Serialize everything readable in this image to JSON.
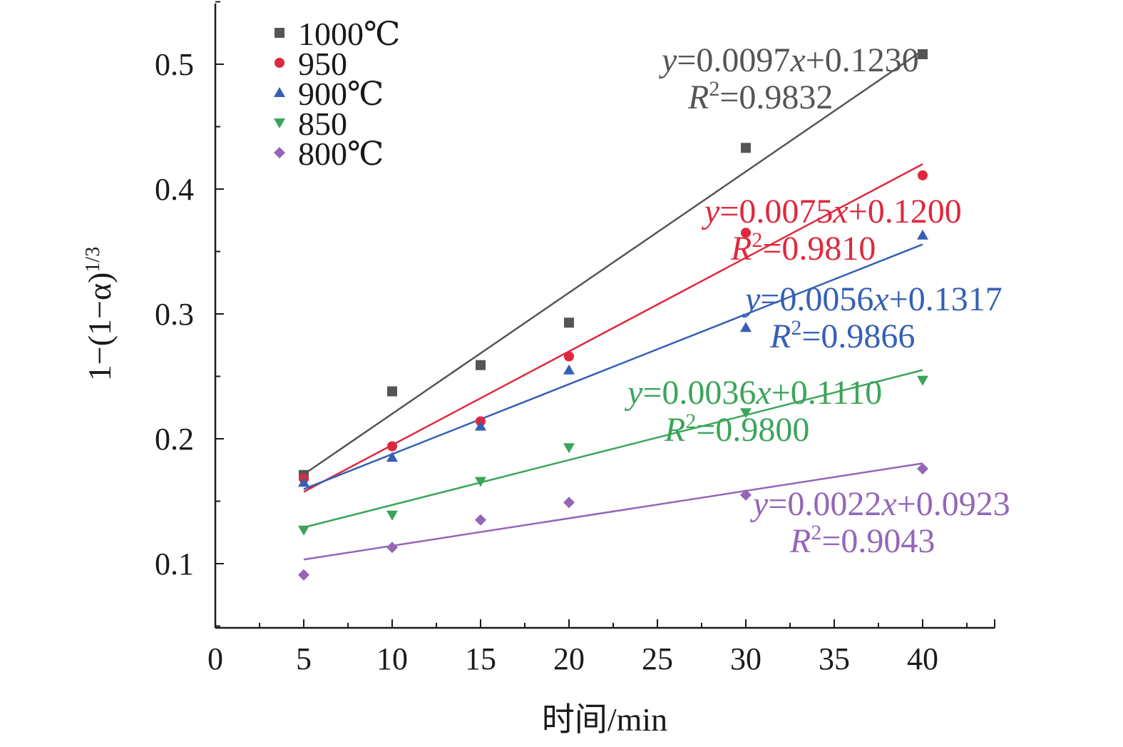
{
  "chart_data": {
    "type": "scatter",
    "xlabel": "时间/min",
    "ylabel": "1−(1−α)",
    "ylabel_sup": "1/3",
    "xlim": [
      0,
      44
    ],
    "ylim": [
      0.05,
      0.55
    ],
    "xticks": [
      "0",
      "5",
      "10",
      "15",
      "20",
      "25",
      "30",
      "35",
      "40"
    ],
    "xtick_values": [
      0,
      5,
      10,
      15,
      20,
      25,
      30,
      35,
      40
    ],
    "yticks": [
      "0.1",
      "0.2",
      "0.3",
      "0.4",
      "0.5"
    ],
    "ytick_values": [
      0.1,
      0.2,
      0.3,
      0.4,
      0.5
    ],
    "grid": false,
    "legend_position": "top-left",
    "series": [
      {
        "name": "1000℃",
        "color": "#555555",
        "marker": "square",
        "x": [
          5,
          10,
          15,
          20,
          30,
          40
        ],
        "y": [
          0.171,
          0.238,
          0.259,
          0.293,
          0.433,
          0.508
        ],
        "fit": {
          "slope": 0.0097,
          "intercept": 0.123,
          "x_range": [
            5,
            40
          ]
        },
        "equation_parts": {
          "y": "y",
          "mid": "=0.0097",
          "x": "x",
          "tail": "+0.1230"
        },
        "r2_parts": {
          "r": "R",
          "sup": "2",
          "tail": "=0.9832"
        }
      },
      {
        "name": "950",
        "color": "#e0283c",
        "marker": "circle",
        "x": [
          5,
          10,
          15,
          20,
          30,
          40
        ],
        "y": [
          0.168,
          0.194,
          0.214,
          0.266,
          0.365,
          0.411
        ],
        "fit": {
          "slope": 0.0075,
          "intercept": 0.12,
          "x_range": [
            5,
            40
          ]
        },
        "equation_parts": {
          "y": "y",
          "mid": "=0.0075",
          "x": "x",
          "tail": "+0.1200"
        },
        "r2_parts": {
          "r": "R",
          "sup": "2",
          "tail": "=0.9810"
        }
      },
      {
        "name": "900℃",
        "color": "#3560b5",
        "marker": "triangle-up",
        "x": [
          5,
          10,
          15,
          20,
          30,
          40
        ],
        "y": [
          0.165,
          0.185,
          0.21,
          0.255,
          0.289,
          0.363
        ],
        "fit": {
          "slope": 0.0056,
          "intercept": 0.1317,
          "x_range": [
            5,
            40
          ]
        },
        "equation_parts": {
          "y": "y",
          "mid": "=0.0056",
          "x": "x",
          "tail": "+0.1317"
        },
        "r2_parts": {
          "r": "R",
          "sup": "2",
          "tail": "=0.9866"
        }
      },
      {
        "name": "850",
        "color": "#3aa55a",
        "marker": "triangle-down",
        "x": [
          5,
          10,
          15,
          20,
          30,
          40
        ],
        "y": [
          0.127,
          0.139,
          0.166,
          0.193,
          0.221,
          0.247
        ],
        "fit": {
          "slope": 0.0036,
          "intercept": 0.111,
          "x_range": [
            5,
            40
          ]
        },
        "equation_parts": {
          "y": "y",
          "mid": "=0.0036",
          "x": "x",
          "tail": "+0.1110"
        },
        "r2_parts": {
          "r": "R",
          "sup": "2",
          "tail": "=0.9800"
        }
      },
      {
        "name": "800℃",
        "color": "#9466b8",
        "marker": "diamond",
        "x": [
          5,
          10,
          15,
          20,
          30,
          40
        ],
        "y": [
          0.091,
          0.113,
          0.135,
          0.149,
          0.155,
          0.176
        ],
        "fit": {
          "slope": 0.0022,
          "intercept": 0.0923,
          "x_range": [
            5,
            40
          ]
        },
        "equation_parts": {
          "y": "y",
          "mid": "=0.0022",
          "x": "x",
          "tail": "+0.0923"
        },
        "r2_parts": {
          "r": "R",
          "sup": "2",
          "tail": "=0.9043"
        }
      }
    ]
  }
}
